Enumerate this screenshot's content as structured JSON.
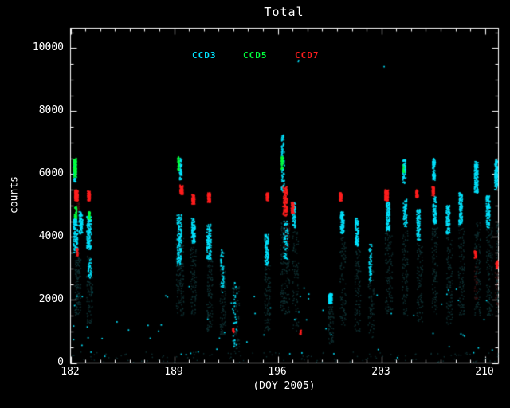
{
  "title": "Total",
  "chart_data": {
    "type": "scatter",
    "title": "Total",
    "xlabel": "(DOY 2005)",
    "ylabel": "counts",
    "xlim": [
      182,
      210.9
    ],
    "ylim": [
      0,
      10630
    ],
    "x_ticks": [
      182,
      189,
      196,
      203,
      210
    ],
    "x_tick_labels": [
      "182",
      "189",
      "196",
      "203",
      "210"
    ],
    "x_minor_tick_interval": 1,
    "y_ticks": [
      0,
      2000,
      4000,
      6000,
      8000,
      10000
    ],
    "y_tick_labels": [
      "0",
      "2000",
      "4000",
      "6000",
      "8000",
      "10000"
    ],
    "y_minor_tick_interval": 500,
    "background_color": "#000000",
    "axis_color": "#ffffff",
    "grid": false,
    "legend_position": "top-inside",
    "legend": [
      {
        "label": "CCD3",
        "color": "#00e4ff"
      },
      {
        "label": "CCD5",
        "color": "#00ff3c"
      },
      {
        "label": "CCD7",
        "color": "#ff1e1e"
      }
    ],
    "cluster_format": [
      "x_center_doy",
      "x_halfwidth_doy",
      "y_min_counts",
      "y_max_counts",
      "n_points"
    ],
    "series": [
      {
        "name": "faint-background-teal",
        "color": "#0f3335",
        "size": 1.4,
        "clusters": [
          [
            182.5,
            0.2,
            1500,
            3500,
            140
          ],
          [
            183.3,
            0.2,
            1200,
            3400,
            110
          ],
          [
            189.4,
            0.25,
            1500,
            4000,
            140
          ],
          [
            190.3,
            0.2,
            1500,
            3700,
            100
          ],
          [
            191.4,
            0.2,
            1000,
            3300,
            110
          ],
          [
            192.3,
            0.2,
            800,
            3000,
            90
          ],
          [
            193.2,
            0.2,
            300,
            2500,
            80
          ],
          [
            195.3,
            0.2,
            1000,
            3100,
            100
          ],
          [
            196.5,
            0.3,
            1500,
            4500,
            150
          ],
          [
            197.2,
            0.2,
            1000,
            4200,
            90
          ],
          [
            199.6,
            0.2,
            600,
            1800,
            70
          ],
          [
            200.4,
            0.2,
            1200,
            4000,
            100
          ],
          [
            201.4,
            0.2,
            1000,
            3600,
            100
          ],
          [
            202.3,
            0.2,
            800,
            3000,
            80
          ],
          [
            203.5,
            0.25,
            1500,
            4200,
            120
          ],
          [
            204.6,
            0.2,
            1500,
            4200,
            100
          ],
          [
            205.6,
            0.2,
            1200,
            3800,
            100
          ],
          [
            206.6,
            0.2,
            1500,
            4300,
            100
          ],
          [
            207.6,
            0.2,
            1200,
            4000,
            100
          ],
          [
            208.4,
            0.2,
            1500,
            4400,
            100
          ],
          [
            209.5,
            0.2,
            1500,
            4500,
            110
          ],
          [
            210.3,
            0.2,
            1500,
            4300,
            110
          ],
          [
            210.9,
            0.15,
            1500,
            4500,
            110
          ],
          [
            196.5,
            14.4,
            20,
            350,
            130
          ]
        ]
      },
      {
        "name": "faint-background-red",
        "color": "#3a1010",
        "size": 1.4,
        "clusters": [
          [
            182.5,
            0.12,
            4800,
            5100,
            35
          ],
          [
            196.6,
            0.2,
            3700,
            4500,
            50
          ],
          [
            203.4,
            0.12,
            4800,
            5100,
            25
          ],
          [
            209.4,
            0.12,
            2000,
            3200,
            30
          ],
          [
            210.8,
            0.12,
            1800,
            2900,
            30
          ]
        ]
      },
      {
        "name": "CCD3",
        "color": "#00e4ff",
        "size": 1.7,
        "clusters": [
          [
            182.35,
            0.15,
            3500,
            4600,
            120
          ],
          [
            182.3,
            0.08,
            5750,
            6450,
            70
          ],
          [
            182.7,
            0.12,
            4100,
            4800,
            90
          ],
          [
            183.25,
            0.15,
            3600,
            4650,
            130
          ],
          [
            183.3,
            0.1,
            2700,
            3300,
            35
          ],
          [
            189.35,
            0.15,
            3100,
            4700,
            150
          ],
          [
            189.45,
            0.08,
            5800,
            6500,
            55
          ],
          [
            190.3,
            0.12,
            3800,
            4600,
            110
          ],
          [
            191.35,
            0.15,
            3300,
            4400,
            120
          ],
          [
            192.25,
            0.1,
            2400,
            3600,
            45
          ],
          [
            193.1,
            0.15,
            500,
            2600,
            35
          ],
          [
            195.25,
            0.12,
            3100,
            4100,
            100
          ],
          [
            196.35,
            0.1,
            5400,
            7250,
            90
          ],
          [
            196.55,
            0.15,
            3300,
            4500,
            60
          ],
          [
            197.1,
            0.1,
            4300,
            5100,
            70
          ],
          [
            199.55,
            0.12,
            1880,
            2200,
            100
          ],
          [
            200.35,
            0.12,
            4100,
            4800,
            100
          ],
          [
            201.35,
            0.12,
            3700,
            4600,
            110
          ],
          [
            202.25,
            0.1,
            2600,
            3800,
            55
          ],
          [
            203.45,
            0.12,
            4200,
            5100,
            120
          ],
          [
            204.55,
            0.1,
            5700,
            6450,
            75
          ],
          [
            204.6,
            0.12,
            4300,
            5200,
            70
          ],
          [
            205.5,
            0.12,
            3900,
            4900,
            100
          ],
          [
            206.55,
            0.1,
            5800,
            6500,
            75
          ],
          [
            206.6,
            0.12,
            4400,
            5300,
            80
          ],
          [
            207.5,
            0.12,
            4100,
            5000,
            110
          ],
          [
            208.35,
            0.12,
            4400,
            5400,
            110
          ],
          [
            209.4,
            0.12,
            5400,
            6400,
            130
          ],
          [
            210.2,
            0.12,
            4300,
            5300,
            120
          ],
          [
            210.75,
            0.1,
            5500,
            6450,
            110
          ],
          [
            211.15,
            0.1,
            4600,
            6200,
            90
          ],
          [
            196.5,
            14.3,
            150,
            2600,
            70
          ],
          [
            197.4,
            0.03,
            9530,
            9650,
            2
          ],
          [
            203.2,
            0.03,
            9400,
            9520,
            1
          ]
        ]
      },
      {
        "name": "CCD5",
        "color": "#00ff3c",
        "size": 1.7,
        "clusters": [
          [
            182.3,
            0.1,
            5900,
            6500,
            90
          ],
          [
            182.35,
            0.08,
            4600,
            4950,
            45
          ],
          [
            183.25,
            0.08,
            4550,
            4800,
            35
          ],
          [
            189.3,
            0.06,
            6100,
            6550,
            40
          ],
          [
            196.3,
            0.06,
            6150,
            6550,
            40
          ],
          [
            204.5,
            0.05,
            6050,
            6300,
            12
          ]
        ]
      },
      {
        "name": "CCD7",
        "color": "#ff1e1e",
        "size": 1.7,
        "clusters": [
          [
            182.4,
            0.12,
            5150,
            5500,
            130
          ],
          [
            182.45,
            0.06,
            3400,
            3650,
            22
          ],
          [
            183.25,
            0.1,
            5150,
            5450,
            90
          ],
          [
            189.5,
            0.1,
            5350,
            5650,
            80
          ],
          [
            190.3,
            0.1,
            5050,
            5350,
            70
          ],
          [
            191.35,
            0.1,
            5100,
            5400,
            80
          ],
          [
            193.0,
            0.05,
            950,
            1100,
            18
          ],
          [
            195.3,
            0.08,
            5150,
            5400,
            50
          ],
          [
            196.5,
            0.15,
            4650,
            5600,
            150
          ],
          [
            197.0,
            0.1,
            4750,
            5100,
            60
          ],
          [
            197.55,
            0.05,
            900,
            1050,
            16
          ],
          [
            200.25,
            0.08,
            5150,
            5400,
            60
          ],
          [
            203.35,
            0.12,
            5150,
            5500,
            120
          ],
          [
            205.4,
            0.08,
            5250,
            5500,
            55
          ],
          [
            206.5,
            0.08,
            5300,
            5600,
            55
          ],
          [
            209.35,
            0.07,
            3300,
            3550,
            35
          ],
          [
            210.8,
            0.07,
            3000,
            3250,
            35
          ],
          [
            211.1,
            0.05,
            2900,
            3100,
            18
          ]
        ]
      }
    ]
  }
}
